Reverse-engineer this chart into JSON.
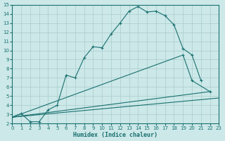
{
  "background_color": "#cce8e8",
  "grid_color": "#aacccc",
  "line_color": "#1a7070",
  "xlabel": "Humidex (Indice chaleur)",
  "xlim": [
    0,
    23
  ],
  "ylim": [
    2,
    15
  ],
  "xticks": [
    0,
    1,
    2,
    3,
    4,
    5,
    6,
    7,
    8,
    9,
    10,
    11,
    12,
    13,
    14,
    15,
    16,
    17,
    18,
    19,
    20,
    21,
    22,
    23
  ],
  "yticks": [
    2,
    3,
    4,
    5,
    6,
    7,
    8,
    9,
    10,
    11,
    12,
    13,
    14,
    15
  ],
  "line1_x": [
    0,
    1,
    2,
    3,
    4,
    5,
    6,
    7,
    8,
    9,
    10,
    11,
    12,
    13,
    14,
    15,
    16,
    17,
    18,
    19,
    20,
    21
  ],
  "line1_y": [
    2.7,
    3.1,
    2.2,
    2.2,
    3.5,
    4.0,
    7.3,
    7.0,
    9.2,
    10.4,
    10.3,
    11.8,
    13.0,
    14.3,
    14.8,
    14.2,
    14.3,
    13.8,
    12.8,
    10.2,
    9.5,
    6.7
  ],
  "line2_x": [
    0,
    19,
    20,
    22
  ],
  "line2_y": [
    2.7,
    9.5,
    6.7,
    5.5
  ],
  "line3_x": [
    0,
    22
  ],
  "line3_y": [
    2.7,
    5.5
  ],
  "line4_x": [
    0,
    23
  ],
  "line4_y": [
    2.7,
    4.8
  ]
}
